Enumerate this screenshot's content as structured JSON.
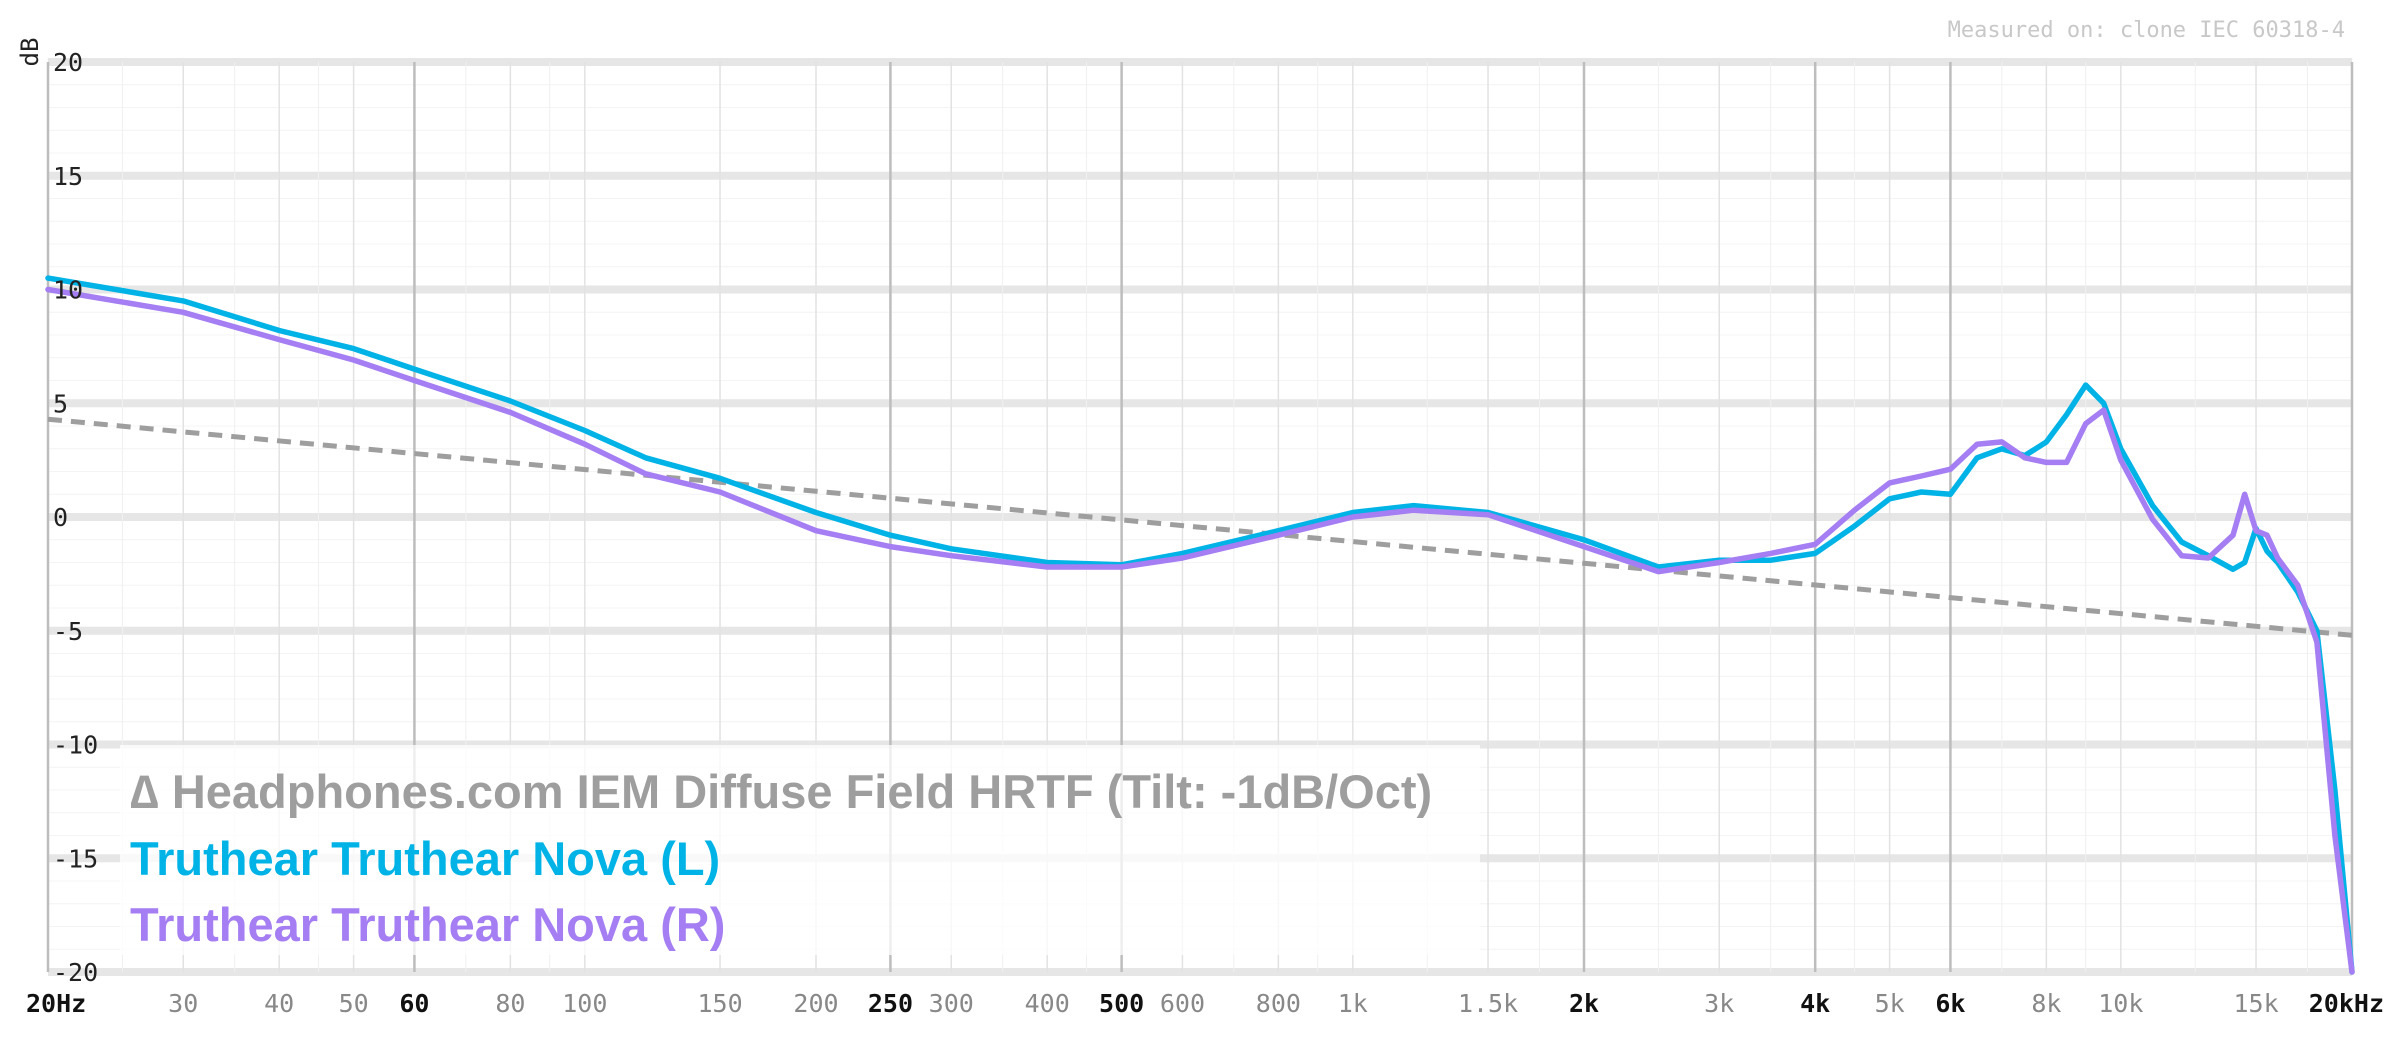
{
  "measured_note": "Measured on: clone IEC 60318-4",
  "chart_data": {
    "type": "line",
    "xscale": "log",
    "xlim": [
      20,
      20000
    ],
    "ylim": [
      -20,
      20
    ],
    "ylabel": "dB",
    "grid": true,
    "legend_placement": "bottom-left",
    "y_ticks": [
      {
        "value": 20,
        "label": "20"
      },
      {
        "value": 15,
        "label": "15"
      },
      {
        "value": 10,
        "label": "10"
      },
      {
        "value": 5,
        "label": "5"
      },
      {
        "value": 0,
        "label": "0"
      },
      {
        "value": -5,
        "label": "-5"
      },
      {
        "value": -10,
        "label": "-10"
      },
      {
        "value": -15,
        "label": "-15"
      },
      {
        "value": -20,
        "label": "-20"
      }
    ],
    "x_ticks": [
      {
        "value": 20,
        "label": "20Hz",
        "major": true
      },
      {
        "value": 30,
        "label": "30",
        "major": false
      },
      {
        "value": 40,
        "label": "40",
        "major": false
      },
      {
        "value": 50,
        "label": "50",
        "major": false
      },
      {
        "value": 60,
        "label": "60",
        "major": true
      },
      {
        "value": 80,
        "label": "80",
        "major": false
      },
      {
        "value": 100,
        "label": "100",
        "major": false
      },
      {
        "value": 150,
        "label": "150",
        "major": false
      },
      {
        "value": 200,
        "label": "200",
        "major": false
      },
      {
        "value": 250,
        "label": "250",
        "major": true
      },
      {
        "value": 300,
        "label": "300",
        "major": false
      },
      {
        "value": 400,
        "label": "400",
        "major": false
      },
      {
        "value": 500,
        "label": "500",
        "major": true
      },
      {
        "value": 600,
        "label": "600",
        "major": false
      },
      {
        "value": 800,
        "label": "800",
        "major": false
      },
      {
        "value": 1000,
        "label": "1k",
        "major": false
      },
      {
        "value": 1500,
        "label": "1.5k",
        "major": false
      },
      {
        "value": 2000,
        "label": "2k",
        "major": true
      },
      {
        "value": 3000,
        "label": "3k",
        "major": false
      },
      {
        "value": 4000,
        "label": "4k",
        "major": true
      },
      {
        "value": 5000,
        "label": "5k",
        "major": false
      },
      {
        "value": 6000,
        "label": "6k",
        "major": true
      },
      {
        "value": 8000,
        "label": "8k",
        "major": false
      },
      {
        "value": 10000,
        "label": "10k",
        "major": false
      },
      {
        "value": 15000,
        "label": "15k",
        "major": false
      },
      {
        "value": 20000,
        "label": "20kHz",
        "major": true
      }
    ],
    "series": [
      {
        "name": "∆ Headphones.com IEM Diffuse Field HRTF (Tilt: -1dB/Oct)",
        "color": "#9e9e9e",
        "style": "dashed",
        "x": [
          20,
          20000
        ],
        "y": [
          4.3,
          -5.2
        ]
      },
      {
        "name": "Truthear Truthear Nova (L)",
        "color": "#00b3e6",
        "style": "solid",
        "x": [
          20,
          30,
          40,
          50,
          60,
          80,
          100,
          120,
          150,
          200,
          250,
          300,
          400,
          500,
          600,
          800,
          1000,
          1200,
          1500,
          2000,
          2500,
          3000,
          3500,
          4000,
          4500,
          5000,
          5500,
          6000,
          6500,
          7000,
          7500,
          8000,
          8500,
          9000,
          9500,
          10000,
          11000,
          12000,
          13000,
          14000,
          14500,
          15000,
          15500,
          16000,
          17000,
          18000,
          19000,
          20000
        ],
        "y": [
          10.5,
          9.5,
          8.2,
          7.4,
          6.5,
          5.1,
          3.8,
          2.6,
          1.7,
          0.2,
          -0.8,
          -1.4,
          -2.0,
          -2.1,
          -1.6,
          -0.6,
          0.2,
          0.5,
          0.2,
          -1.0,
          -2.2,
          -1.9,
          -1.9,
          -1.6,
          -0.4,
          0.8,
          1.1,
          1.0,
          2.6,
          3.0,
          2.7,
          3.3,
          4.5,
          5.8,
          5.0,
          3.0,
          0.5,
          -1.1,
          -1.7,
          -2.3,
          -2.0,
          -0.5,
          -1.5,
          -2.0,
          -3.3,
          -5.0,
          -12.0,
          -20.0
        ]
      },
      {
        "name": "Truthear Truthear Nova (R)",
        "color": "#a47ef2",
        "style": "solid",
        "x": [
          20,
          30,
          40,
          50,
          60,
          80,
          100,
          120,
          150,
          200,
          250,
          300,
          400,
          500,
          600,
          800,
          1000,
          1200,
          1500,
          2000,
          2500,
          3000,
          3500,
          4000,
          4500,
          5000,
          5500,
          6000,
          6500,
          7000,
          7500,
          8000,
          8500,
          9000,
          9500,
          10000,
          11000,
          12000,
          13000,
          14000,
          14500,
          15000,
          15500,
          16000,
          17000,
          18000,
          19000,
          20000
        ],
        "y": [
          10.0,
          9.0,
          7.8,
          6.9,
          6.0,
          4.6,
          3.2,
          1.9,
          1.1,
          -0.6,
          -1.3,
          -1.7,
          -2.2,
          -2.2,
          -1.8,
          -0.8,
          0.0,
          0.3,
          0.1,
          -1.3,
          -2.4,
          -2.0,
          -1.6,
          -1.2,
          0.3,
          1.5,
          1.8,
          2.1,
          3.2,
          3.3,
          2.6,
          2.4,
          2.4,
          4.1,
          4.7,
          2.5,
          -0.1,
          -1.7,
          -1.8,
          -0.8,
          1.0,
          -0.6,
          -0.8,
          -1.8,
          -3.0,
          -5.5,
          -14.0,
          -20.0
        ]
      }
    ]
  }
}
